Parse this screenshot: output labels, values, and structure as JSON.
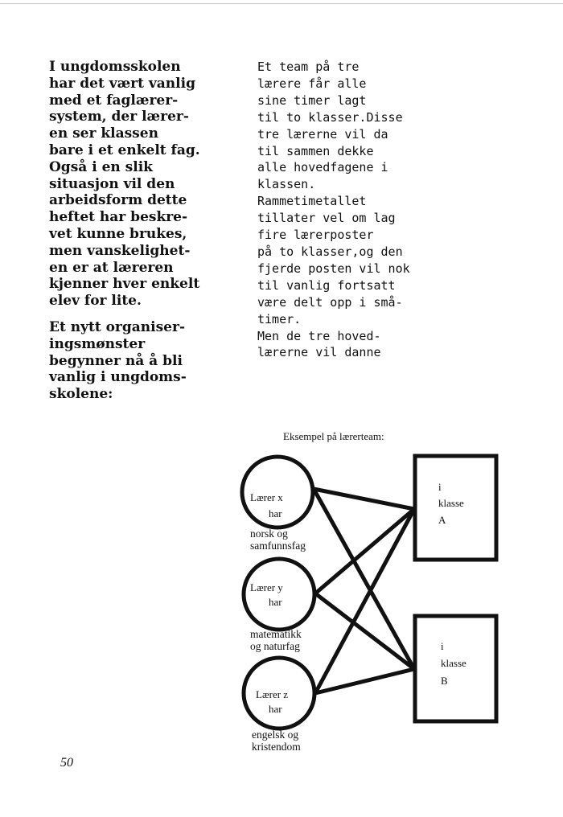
{
  "left_column": {
    "para1": [
      "I ungdomsskolen",
      "har det vært vanlig",
      "med et faglærer-",
      "system, der lærer-",
      "en ser klassen",
      "bare i et enkelt fag.",
      "Også i en slik",
      "situasjon vil den",
      "arbeidsform dette",
      "heftet har beskre-",
      "vet kunne brukes,",
      "men vanskelighet-",
      "en er at læreren",
      "kjenner hver enkelt",
      "elev for lite."
    ],
    "para2": [
      "Et nytt organiser-",
      "ingsmønster",
      "begynner nå å bli",
      "vanlig i ungdoms-",
      "skolene:"
    ]
  },
  "right_column": {
    "lines": [
      "Et team på tre",
      "lærere får alle",
      "sine timer lagt",
      "til to klasser.Disse",
      "tre lærerne vil da",
      "til sammen dekke",
      "alle hovedfagene i",
      "klassen.",
      "Rammetimetallet",
      "tillater vel om lag",
      "fire lærerposter",
      "på to klasser,og den",
      "fjerde posten vil nok",
      "til vanlig fortsatt",
      "være delt opp i små-",
      "timer.",
      "Men de tre hoved-",
      "lærerne vil danne"
    ]
  },
  "diagram": {
    "caption": "Eksempel på lærerteam:",
    "teachers": [
      {
        "line1": "Lærer x",
        "line2": "har",
        "subject1": "norsk og",
        "subject2": "samfunnsfag"
      },
      {
        "line1": "Lærer y",
        "line2": "har",
        "subject1": "matematikk",
        "subject2": "og naturfag"
      },
      {
        "line1": "Lærer z",
        "line2": "har",
        "subject1": "engelsk og",
        "subject2": "kristendom"
      }
    ],
    "classes": [
      {
        "line1": "i",
        "line2": "klasse",
        "line3": "A"
      },
      {
        "line1": "i",
        "line2": "klasse",
        "line3": "B"
      }
    ]
  },
  "page_number": "50"
}
